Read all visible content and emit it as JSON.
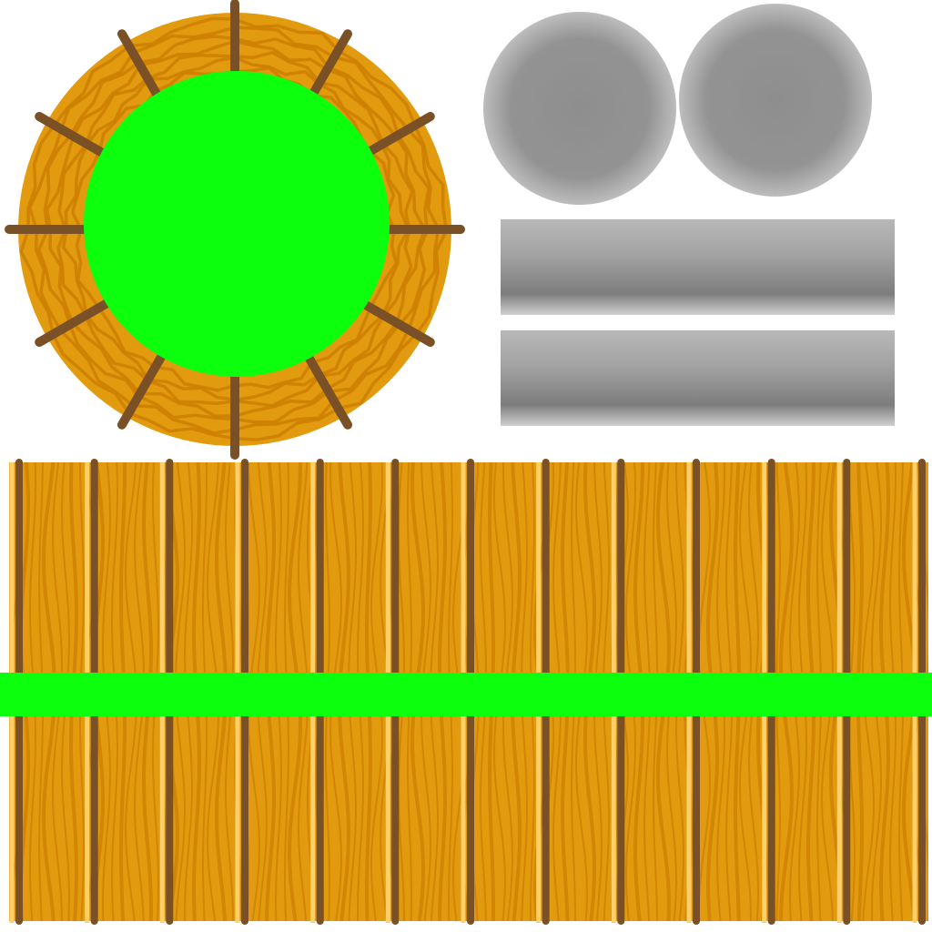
{
  "atlas": {
    "background": "#ffffff",
    "barrel_top": {
      "icon": "wooden-barrel-lid",
      "wood_color": "#e29b0f",
      "grain_color": "#cc7f00",
      "stave_color": "#7a5126",
      "center_color": "#0cff0c",
      "spoke_count": 12
    },
    "metal_discs": {
      "count": 2,
      "edge_color": "#b9b9b9",
      "center_color": "#8e8e8e"
    },
    "metal_bands": {
      "count": 2,
      "top_color": "#b8b8b8",
      "middle_color": "#7d7d7d",
      "bottom_color": "#d0d0d0"
    },
    "wood_side": {
      "icon": "barrel-side-planks",
      "plank_color": "#e29b0f",
      "grain_color": "#cc7f00",
      "highlight_color": "#ffcf6a",
      "divider_color": "#7a5126",
      "divider_count": 13,
      "band_color": "#0cff0c"
    }
  }
}
